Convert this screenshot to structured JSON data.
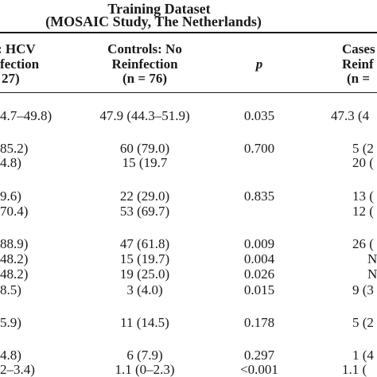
{
  "title": {
    "line1": "Training Dataset",
    "line2": "(MOSAIC Study, The Netherlands)"
  },
  "columns": {
    "cases_partial": {
      "line1": ": HCV",
      "line2": "fection",
      "line3": "27)"
    },
    "controls": {
      "line1": "Controls: No",
      "line2": "Reinfection",
      "line3": "(n = 76)"
    },
    "p": "p",
    "cases_val": {
      "line1": "Cases",
      "line2": "Reinf",
      "line3": "(n ="
    }
  },
  "rows": [
    {
      "c1": "4.7–49.8)",
      "c2": "47.9 (44.3–51.9)",
      "p": "0.035",
      "c4": "47.3 (4"
    },
    {
      "c1": "85.2)",
      "c2": "60 (79.0)",
      "p": "0.700",
      "c4": "5 (2"
    },
    {
      "c1": "4.8)",
      "c2": "15 (19.7",
      "p": "",
      "c4": "20 ("
    },
    {
      "c1": "9.6)",
      "c2": "22 (29.0)",
      "p": "0.835",
      "c4": "13 ("
    },
    {
      "c1": "70.4)",
      "c2": "53 (69.7)",
      "p": "",
      "c4": "12 ("
    },
    {
      "c1": "88.9)",
      "c2": "47 (61.8)",
      "p": "0.009",
      "c4": "26 ("
    },
    {
      "c1": "48.2)",
      "c2": "15 (19.7)",
      "p": "0.004",
      "c4": "N"
    },
    {
      "c1": "48.2)",
      "c2": "19 (25.0)",
      "p": "0.026",
      "c4": "N"
    },
    {
      "c1": "8.5)",
      "c2": "3 (4.0)",
      "p": "0.015",
      "c4": "9 (3"
    },
    {
      "c1": "5.9)",
      "c2": "11 (14.5)",
      "p": "0.178",
      "c4": "5 (2"
    },
    {
      "c1": "4.8)",
      "c2": "6 (7.9)",
      "p": "0.297",
      "c4": "1 (4"
    },
    {
      "c1": "2–3.4)",
      "c2": "1.1 (0–2.3)",
      "p": "<0.001",
      "c4": "1.1 ("
    }
  ]
}
